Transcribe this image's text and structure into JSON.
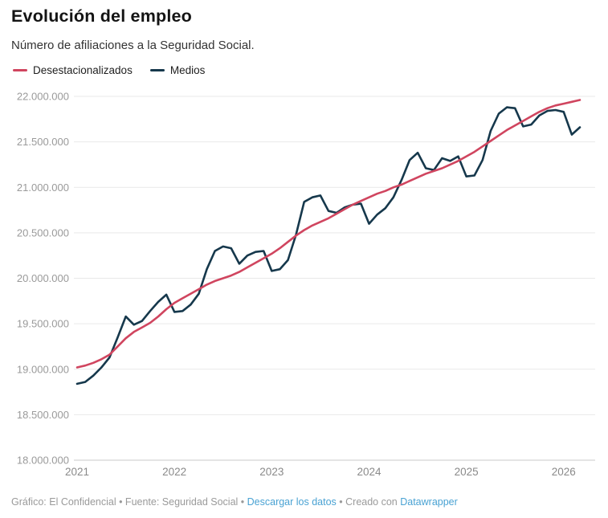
{
  "header": {
    "title": "Evolución del empleo",
    "subtitle": "Número de afiliaciones a la Seguridad Social."
  },
  "legend": [
    {
      "label": "Desestacionalizados",
      "color": "#d0455f"
    },
    {
      "label": "Medios",
      "color": "#16384c"
    }
  ],
  "footer": {
    "part1": "Gráfico: El Confidencial • Fuente: Seguridad Social • ",
    "download_link": "Descargar los datos",
    "part2": " • Creado con ",
    "datawrapper_link": "Datawrapper",
    "link_color": "#49a2d3"
  },
  "chart_data": {
    "type": "line",
    "title": "Evolución del empleo",
    "subtitle": "Número de afiliaciones a la Seguridad Social.",
    "xlabel": "",
    "ylabel": "",
    "grid": "horizontal",
    "legend_position": "top-left",
    "ylim": [
      18000000,
      22000000
    ],
    "yticks": [
      {
        "v": 18000000,
        "label": "18.000.000"
      },
      {
        "v": 18500000,
        "label": "18.500.000"
      },
      {
        "v": 19000000,
        "label": "19.000.000"
      },
      {
        "v": 19500000,
        "label": "19.500.000"
      },
      {
        "v": 20000000,
        "label": "20.000.000"
      },
      {
        "v": 20500000,
        "label": "20.500.000"
      },
      {
        "v": 21000000,
        "label": "21.000.000"
      },
      {
        "v": 21500000,
        "label": "21.500.000"
      },
      {
        "v": 22000000,
        "label": "22.000.000"
      }
    ],
    "xticks": [
      {
        "m": 0,
        "label": "2021"
      },
      {
        "m": 12,
        "label": "2022"
      },
      {
        "m": 24,
        "label": "2023"
      },
      {
        "m": 36,
        "label": "2024"
      },
      {
        "m": 48,
        "label": "2025"
      },
      {
        "m": 60,
        "label": "2026"
      }
    ],
    "months": [
      "2021-01",
      "2021-02",
      "2021-03",
      "2021-04",
      "2021-05",
      "2021-06",
      "2021-07",
      "2021-08",
      "2021-09",
      "2021-10",
      "2021-11",
      "2021-12",
      "2022-01",
      "2022-02",
      "2022-03",
      "2022-04",
      "2022-05",
      "2022-06",
      "2022-07",
      "2022-08",
      "2022-09",
      "2022-10",
      "2022-11",
      "2022-12",
      "2023-01",
      "2023-02",
      "2023-03",
      "2023-04",
      "2023-05",
      "2023-06",
      "2023-07",
      "2023-08",
      "2023-09",
      "2023-10",
      "2023-11",
      "2023-12",
      "2024-01",
      "2024-02",
      "2024-03",
      "2024-04",
      "2024-05",
      "2024-06",
      "2024-07",
      "2024-08",
      "2024-09",
      "2024-10",
      "2024-11",
      "2024-12",
      "2025-01",
      "2025-02",
      "2025-03",
      "2025-04",
      "2025-05",
      "2025-06",
      "2025-07",
      "2025-08",
      "2025-09",
      "2025-10",
      "2025-11",
      "2025-12",
      "2026-01",
      "2026-02",
      "2026-03"
    ],
    "series": [
      {
        "name": "Desestacionalizados",
        "color": "#d0455f",
        "values": [
          19020000,
          19040000,
          19070000,
          19110000,
          19160000,
          19250000,
          19340000,
          19410000,
          19460000,
          19510000,
          19580000,
          19660000,
          19730000,
          19780000,
          19830000,
          19880000,
          19930000,
          19970000,
          20000000,
          20030000,
          20070000,
          20120000,
          20170000,
          20220000,
          20270000,
          20330000,
          20400000,
          20470000,
          20530000,
          20580000,
          20620000,
          20660000,
          20710000,
          20760000,
          20810000,
          20850000,
          20890000,
          20930000,
          20960000,
          21000000,
          21030000,
          21070000,
          21110000,
          21150000,
          21180000,
          21210000,
          21250000,
          21290000,
          21340000,
          21390000,
          21450000,
          21510000,
          21570000,
          21630000,
          21680000,
          21730000,
          21780000,
          21830000,
          21870000,
          21900000,
          21920000,
          21940000,
          21960000
        ]
      },
      {
        "name": "Medios",
        "color": "#16384c",
        "values": [
          18840000,
          18860000,
          18930000,
          19020000,
          19130000,
          19350000,
          19580000,
          19490000,
          19530000,
          19640000,
          19740000,
          19820000,
          19630000,
          19640000,
          19710000,
          19830000,
          20100000,
          20300000,
          20350000,
          20330000,
          20160000,
          20250000,
          20290000,
          20300000,
          20080000,
          20100000,
          20200000,
          20480000,
          20840000,
          20890000,
          20910000,
          20740000,
          20720000,
          20780000,
          20810000,
          20820000,
          20600000,
          20700000,
          20770000,
          20890000,
          21080000,
          21300000,
          21380000,
          21210000,
          21190000,
          21320000,
          21290000,
          21340000,
          21120000,
          21130000,
          21300000,
          21620000,
          21810000,
          21880000,
          21870000,
          21670000,
          21690000,
          21790000,
          21840000,
          21850000,
          21830000,
          21580000,
          21660000
        ]
      }
    ],
    "colors": {
      "gridline": "#e9e9e9",
      "baseline": "#c9c9c9",
      "ytick_label": "#9a9a9a",
      "xtick_label": "#8a8a8a"
    }
  }
}
